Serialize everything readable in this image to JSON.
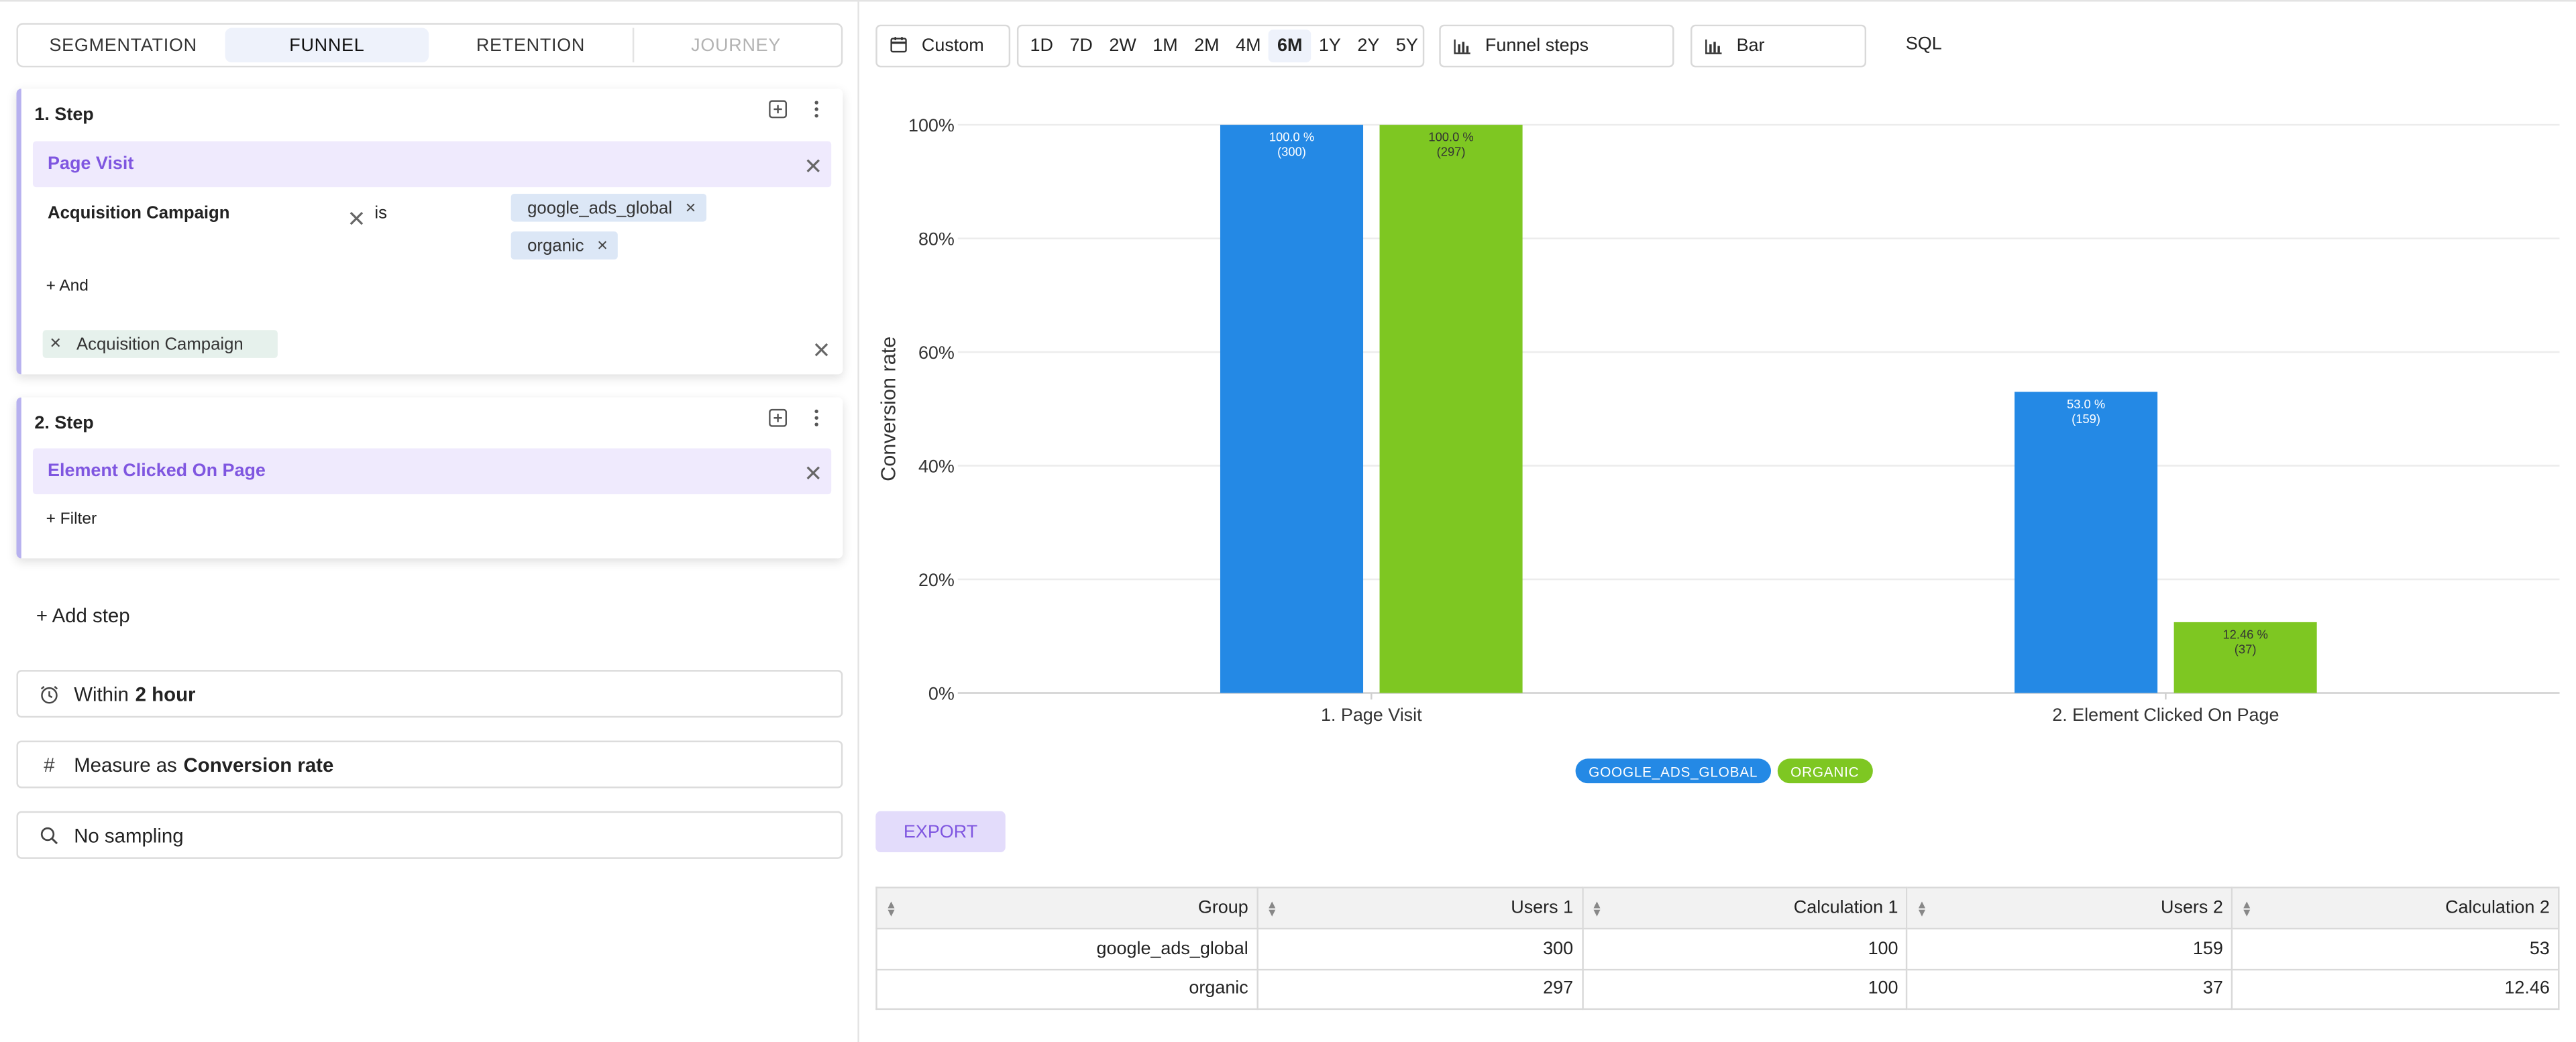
{
  "tabs": [
    {
      "label": "SEGMENTATION"
    },
    {
      "label": "FUNNEL"
    },
    {
      "label": "RETENTION"
    },
    {
      "label": "JOURNEY"
    }
  ],
  "steps": [
    {
      "title": "1.  Step",
      "event": "Page Visit",
      "filter": {
        "property": "Acquisition Campaign",
        "operator": "is",
        "values": [
          "google_ads_global",
          "organic"
        ]
      },
      "and_label": "+ And",
      "group_by": "Acquisition Campaign"
    },
    {
      "title": "2.  Step",
      "event": "Element Clicked On Page",
      "filter_label": "+ Filter"
    }
  ],
  "add_step_label": "+ Add step",
  "options": {
    "within_prefix": "Within",
    "within_value": "2 hour",
    "measure_prefix": "Measure as",
    "measure_value": "Conversion rate",
    "sampling": "No sampling"
  },
  "toolbar": {
    "custom_label": "Custom",
    "ranges": [
      "1D",
      "7D",
      "2W",
      "1M",
      "2M",
      "4M",
      "6M",
      "1Y",
      "2Y",
      "5Y"
    ],
    "active_range": "6M",
    "funnel_label": "Funnel steps",
    "chart_type_label": "Bar",
    "sql_label": "SQL"
  },
  "colors": {
    "google_ads_global": "#2489e5",
    "organic": "#7ec722",
    "accent": "#7f56e0"
  },
  "chart_data": {
    "type": "bar",
    "ylabel": "Conversion rate",
    "ylim": [
      0,
      100
    ],
    "yticks": [
      "0%",
      "20%",
      "40%",
      "60%",
      "80%",
      "100%"
    ],
    "categories": [
      "1. Page Visit",
      "2. Element Clicked On Page"
    ],
    "series": [
      {
        "name": "GOOGLE_ADS_GLOBAL",
        "values": [
          100.0,
          53.0
        ],
        "labels": [
          "100.0 %",
          "53.0 %"
        ],
        "counts": [
          "(300)",
          "(159)"
        ]
      },
      {
        "name": "ORGANIC",
        "values": [
          100.0,
          12.46
        ],
        "labels": [
          "100.0 %",
          "12.46 %"
        ],
        "counts": [
          "(297)",
          "(37)"
        ]
      }
    ],
    "grid": true,
    "legend_position": "bottom-center"
  },
  "export_label": "EXPORT",
  "table": {
    "headers": [
      "Group",
      "Users 1",
      "Calculation 1",
      "Users 2",
      "Calculation 2"
    ],
    "rows": [
      [
        "google_ads_global",
        "300",
        "100",
        "159",
        "53"
      ],
      [
        "organic",
        "297",
        "100",
        "37",
        "12.46"
      ]
    ]
  }
}
